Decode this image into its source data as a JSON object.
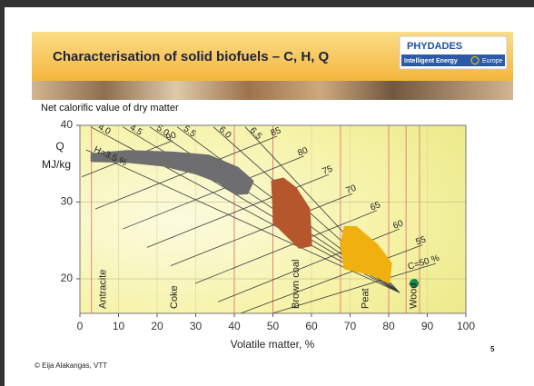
{
  "header": {
    "title": "Characterisation of solid biofuels – C, H, Q",
    "logo": {
      "name": "PHYDADES",
      "line": "Intelligent Energy",
      "region": "Europe"
    }
  },
  "chart_data": {
    "type": "region",
    "title": "Net calorific value of dry matter",
    "y_label": "Q",
    "y_unit": "MJ/kg",
    "x_label": "Volatile matter, %",
    "xlim": [
      0,
      100
    ],
    "xticks": [
      0,
      10,
      20,
      30,
      40,
      50,
      60,
      70,
      80,
      90,
      100
    ],
    "ylim": [
      15.5,
      40
    ],
    "yticks": [
      20,
      30,
      40
    ],
    "grid": true,
    "regions": [
      {
        "color": "#6e6e70",
        "x": [
          3.1,
          12.2,
          24.0,
          33.4,
          40.9,
          44.7,
          43.3,
          40.5,
          35.8,
          29.9,
          21.6,
          12.2,
          3.1
        ],
        "y": [
          36.2,
          36.6,
          36.4,
          36.0,
          34.4,
          32.7,
          31.2,
          31.1,
          32.7,
          33.8,
          34.8,
          35.3,
          35.4
        ]
      },
      {
        "color": "#b5562c",
        "x": [
          49.9,
          52.7,
          55.8,
          59.3,
          59.8,
          56.9,
          50.4
        ],
        "y": [
          32.7,
          33.0,
          31.8,
          29.1,
          24.4,
          24.1,
          27.3
        ]
      },
      {
        "color": "#f0b010",
        "x": [
          68.7,
          71.5,
          76.9,
          80.5,
          80.0,
          75.8,
          68.7,
          67.8
        ],
        "y": [
          26.7,
          26.7,
          24.4,
          22.0,
          19.6,
          20.6,
          21.4,
          24.4
        ]
      }
    ],
    "points": [
      {
        "x": 86.6,
        "y": 19.4,
        "color": "#14884a"
      }
    ],
    "boundaries": [
      3,
      40,
      50,
      67.5,
      80,
      84.5,
      88
    ],
    "boundary_color": "#e07a7a",
    "fuels": [
      {
        "label": "Antracite",
        "x": 6
      },
      {
        "label": "Coke",
        "x": 24.5
      },
      {
        "label": "Brown coal",
        "x": 56
      },
      {
        "label": "Peat",
        "x": 74
      },
      {
        "label": "Wood",
        "x": 86.5
      }
    ],
    "isoline_color": "#3a3a3a",
    "isolines": [
      {
        "label": "H=3.5 %",
        "x": [
          1.6,
          82.8
        ],
        "y": [
          36.8,
          18.2
        ]
      },
      {
        "label": "4.0",
        "x": [
          2.8,
          82.8
        ],
        "y": [
          39.8,
          18.2
        ]
      },
      {
        "label": "4.5",
        "x": [
          11.1,
          82.8
        ],
        "y": [
          39.8,
          18.2
        ]
      },
      {
        "label": "5.0",
        "x": [
          18.1,
          82.8
        ],
        "y": [
          39.8,
          18.2
        ]
      },
      {
        "label": "5.5",
        "x": [
          25.2,
          82.8
        ],
        "y": [
          39.8,
          18.2
        ]
      },
      {
        "label": "6.0",
        "x": [
          34.6,
          82.8
        ],
        "y": [
          39.8,
          18.2
        ]
      },
      {
        "label": "6.5",
        "x": [
          42.8,
          82.8
        ],
        "y": [
          39.8,
          18.2
        ]
      },
      {
        "label": "90",
        "x": [
          0.5,
          24
        ],
        "y": [
          33.3,
          38
        ]
      },
      {
        "label": "85",
        "x": [
          4,
          51.1
        ],
        "y": [
          29.1,
          38.6
        ]
      },
      {
        "label": "80",
        "x": [
          11.1,
          58.1
        ],
        "y": [
          26.5,
          36.0
        ]
      },
      {
        "label": "75",
        "x": [
          17.4,
          64.5
        ],
        "y": [
          24.1,
          33.6
        ]
      },
      {
        "label": "70",
        "x": [
          23.5,
          70.6
        ],
        "y": [
          21.7,
          31.1
        ]
      },
      {
        "label": "65",
        "x": [
          29.9,
          76.9
        ],
        "y": [
          19.4,
          28.9
        ]
      },
      {
        "label": "60",
        "x": [
          35.8,
          82.8
        ],
        "y": [
          17.0,
          26.5
        ]
      },
      {
        "label": "55",
        "x": [
          41.6,
          88.7
        ],
        "y": [
          15.5,
          24.4
        ]
      },
      {
        "label": "C=50 %",
        "x": [
          49.9,
          92.2
        ],
        "y": [
          15.5,
          22.0
        ]
      }
    ]
  },
  "footer": {
    "credit": "© Eija Alakangas, VTT",
    "page": "5"
  }
}
